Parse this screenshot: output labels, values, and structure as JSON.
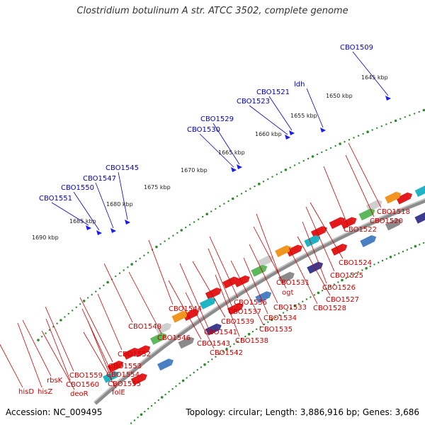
{
  "title": "Clostridium botulinum A str. ATCC 3502, complete genome",
  "footer": {
    "accession": "Accession: NC_009495",
    "summary": "Topology: circular; Length: 3,886,916 bp; Genes: 3,686"
  },
  "colors": {
    "backbone": "#8c8c8c",
    "tick_dots": "#2e8b2e",
    "forward_label": "#0000cc",
    "reverse_label": "#cc0000",
    "forward_arrow": "#1a1aff",
    "reverse_arrow": "#ff1a1a"
  },
  "ticks": [
    "1645 kbp",
    "1650 kbp",
    "1655 kbp",
    "1660 kbp",
    "1665 kbp",
    "1670 kbp",
    "1675 kbp",
    "1680 kbp",
    "1685 kbp",
    "1690 kbp"
  ],
  "forward_genes": [
    "CBO1509",
    "ldh",
    "CBO1521",
    "CBO1523",
    "CBO1529",
    "CBO1530",
    "CBO1545",
    "CBO1547",
    "CBO1550",
    "CBO1551"
  ],
  "reverse_genes": [
    "CBO1518",
    "CBO1520",
    "CBO1522",
    "CBO1524",
    "CBO1525",
    "CBO1526",
    "CBO1527",
    "CBO1528",
    "CBO1531",
    "ogt",
    "CBO1533",
    "CBO1534",
    "CBO1535",
    "CBO1536",
    "CBO1537",
    "CBO1539",
    "CBO1541",
    "CBO1538",
    "CBO1543",
    "CBO1542",
    "CBO1544",
    "CBO1546",
    "CBO1548",
    "CBO1552",
    "CBO1553",
    "CBO1554",
    "CBO1555",
    "folE",
    "CBO1559",
    "CBO1560",
    "deoR",
    "rbsK",
    "hisZ",
    "hisD"
  ]
}
